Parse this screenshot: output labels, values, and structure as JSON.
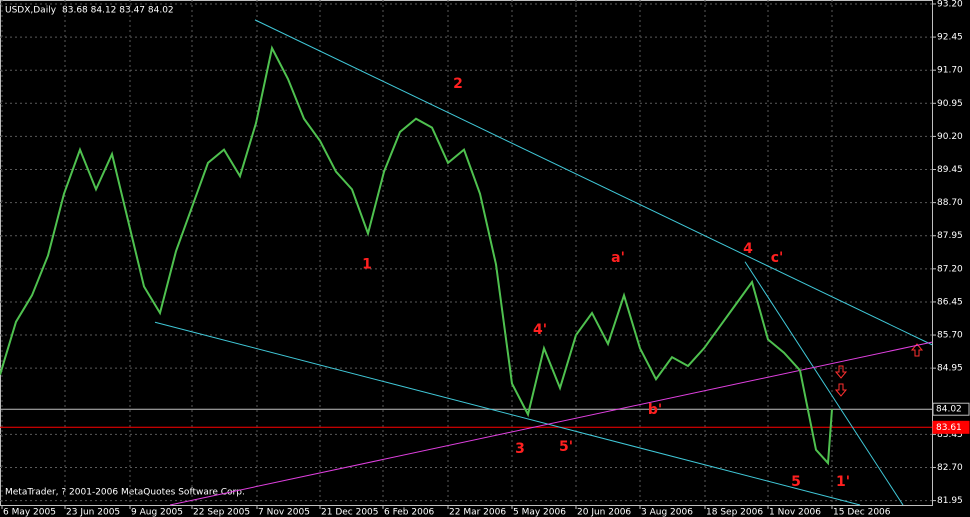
{
  "chart_data": {
    "type": "line",
    "title": "USDX,Daily",
    "subtitle": "83.68 84.12 83.47 84.02",
    "footer": "MetaTrader, ? 2001-2006 MetaQuotes Software Corp.",
    "xlim": [
      0,
      466
    ],
    "ylim": [
      81.85,
      93.29
    ],
    "grid": true,
    "xticks": [
      {
        "value": 1,
        "label": "6 May 2005"
      },
      {
        "value": 32.5,
        "label": "23 Jun 2005"
      },
      {
        "value": 65,
        "label": "9 Aug 2005"
      },
      {
        "value": 96,
        "label": "22 Sep 2005"
      },
      {
        "value": 128.5,
        "label": "7 Nov 2005"
      },
      {
        "value": 160,
        "label": "21 Dec 2005"
      },
      {
        "value": 191.5,
        "label": "6 Feb 2006"
      },
      {
        "value": 224,
        "label": "22 Mar 2006"
      },
      {
        "value": 256,
        "label": "5 May 2006"
      },
      {
        "value": 288,
        "label": "20 Jun 2006"
      },
      {
        "value": 320,
        "label": "3 Aug 2006"
      },
      {
        "value": 352.5,
        "label": "18 Sep 2006"
      },
      {
        "value": 384,
        "label": "1 Nov 2006"
      },
      {
        "value": 416,
        "label": "15 Dec 2006"
      }
    ],
    "yticks": [
      {
        "value": 93.2,
        "label": "93.20"
      },
      {
        "value": 92.45,
        "label": "92.45"
      },
      {
        "value": 91.7,
        "label": "91.70"
      },
      {
        "value": 90.95,
        "label": "90.95"
      },
      {
        "value": 90.2,
        "label": "90.20"
      },
      {
        "value": 89.45,
        "label": "89.45"
      },
      {
        "value": 88.7,
        "label": "88.70"
      },
      {
        "value": 87.95,
        "label": "87.95"
      },
      {
        "value": 87.2,
        "label": "87.20"
      },
      {
        "value": 86.45,
        "label": "86.45"
      },
      {
        "value": 85.7,
        "label": "85.70"
      },
      {
        "value": 84.95,
        "label": "84.95"
      },
      {
        "value": 83.45,
        "label": "83.45"
      },
      {
        "value": 82.7,
        "label": "82.70"
      },
      {
        "value": 81.95,
        "label": "81.95"
      }
    ],
    "series": [
      {
        "name": "USDX",
        "color": "#4fc14f",
        "x": [
          0,
          8,
          16,
          24,
          32,
          40,
          48,
          56,
          64,
          72,
          80,
          88,
          96,
          104,
          112,
          120,
          128,
          136,
          144,
          152,
          160,
          168,
          176,
          184,
          192,
          200,
          208,
          216,
          224,
          232,
          240,
          248,
          256,
          264,
          272,
          280,
          288,
          296,
          304,
          312,
          320,
          328,
          336,
          344,
          352,
          360,
          368,
          376,
          384,
          392,
          400,
          408,
          414,
          416
        ],
        "values": [
          84.8,
          86.0,
          86.6,
          87.5,
          88.9,
          89.9,
          89.0,
          89.8,
          88.3,
          86.8,
          86.2,
          87.6,
          88.6,
          89.6,
          89.9,
          89.3,
          90.5,
          92.2,
          91.5,
          90.6,
          90.1,
          89.4,
          89.0,
          88.0,
          89.4,
          90.3,
          90.6,
          90.4,
          89.6,
          89.9,
          88.9,
          87.3,
          84.6,
          83.9,
          85.4,
          84.5,
          85.7,
          86.2,
          85.5,
          86.6,
          85.4,
          84.7,
          85.2,
          85.0,
          85.4,
          85.9,
          86.4,
          86.9,
          85.6,
          85.3,
          84.9,
          83.1,
          82.8,
          84.02
        ]
      }
    ],
    "levels": [
      {
        "value": 84.02,
        "label": "84.02",
        "color": "#c0c0c0"
      },
      {
        "value": 83.61,
        "label": "83.61",
        "color": "#ff0000"
      }
    ],
    "trendlines": [
      {
        "color": "#40c8d8",
        "x": [
          127.5,
          466
        ],
        "y": [
          92.84,
          85.48
        ]
      },
      {
        "color": "#40c8d8",
        "x": [
          77.5,
          430
        ],
        "y": [
          85.99,
          81.85
        ]
      },
      {
        "color": "#40c8d8",
        "x": [
          372.5,
          451.5
        ],
        "y": [
          87.36,
          81.85
        ]
      },
      {
        "color": "#e040e0",
        "x": [
          85,
          466
        ],
        "y": [
          81.85,
          85.54
        ]
      }
    ],
    "annotations": [
      {
        "text": "1",
        "x": 183.5,
        "y": 87.3
      },
      {
        "text": "2",
        "x": 229,
        "y": 91.39
      },
      {
        "text": "3",
        "x": 260,
        "y": 83.12
      },
      {
        "text": "4",
        "x": 374,
        "y": 87.65
      },
      {
        "text": "5",
        "x": 398,
        "y": 82.37
      },
      {
        "text": "4'",
        "x": 270,
        "y": 85.82
      },
      {
        "text": "5'",
        "x": 283,
        "y": 83.16
      },
      {
        "text": "a'",
        "x": 309,
        "y": 87.45
      },
      {
        "text": "b'",
        "x": 327.5,
        "y": 84.0
      },
      {
        "text": "c'",
        "x": 388.5,
        "y": 87.45
      },
      {
        "text": "1'",
        "x": 421.5,
        "y": 82.37
      }
    ]
  }
}
